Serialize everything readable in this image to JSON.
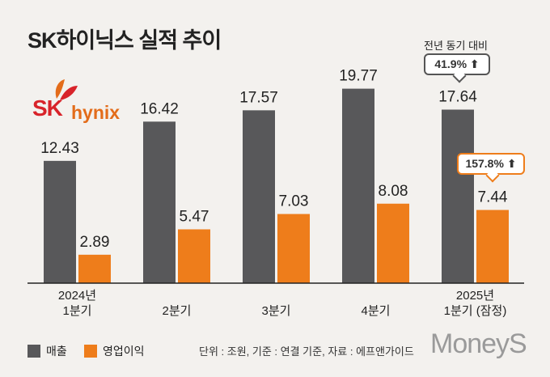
{
  "title": "SK하이닉스 실적 추이",
  "logo": {
    "sk": "SK",
    "hynix": "hynix"
  },
  "yoy": {
    "header": "전년 동기 대비",
    "revenue_change": "41.9%",
    "profit_change": "157.8%"
  },
  "unit_note": "단위 : 조원, 기준 : 연결 기준, 자료 : 에프앤가이드",
  "brand": "MoneyS",
  "colors": {
    "revenue": "#58585a",
    "operating_profit": "#ee7d1b"
  },
  "chart_data": {
    "type": "bar",
    "title": "SK하이닉스 실적 추이",
    "categories": [
      [
        "2024년",
        "1분기"
      ],
      [
        "2분기"
      ],
      [
        "3분기"
      ],
      [
        "4분기"
      ],
      [
        "2025년",
        "1분기 (잠정)"
      ]
    ],
    "series": [
      {
        "name": "매출",
        "values": [
          12.43,
          16.42,
          17.57,
          19.77,
          17.64
        ]
      },
      {
        "name": "영업이익",
        "values": [
          2.89,
          5.47,
          7.03,
          8.08,
          7.44
        ]
      }
    ],
    "ylim": [
      0,
      21.3
    ],
    "legend_position": "bottom-left"
  }
}
